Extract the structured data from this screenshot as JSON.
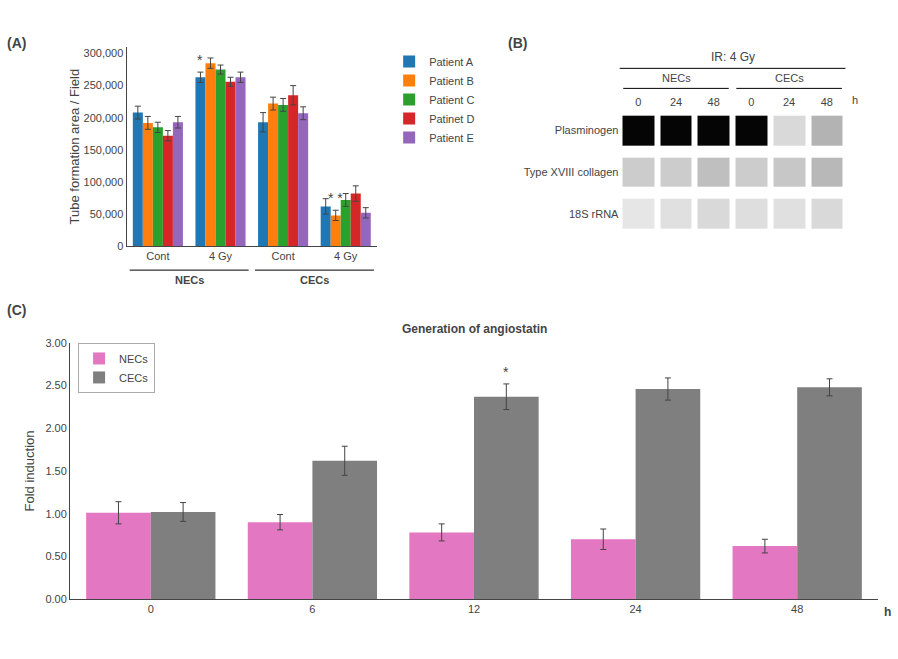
{
  "chart_data": [
    {
      "type": "bar",
      "panel_label": "(A)",
      "categories": [
        "Cont",
        "4 Gy",
        "Cont",
        "4 Gy"
      ],
      "groups": [
        "NECs",
        "NECs",
        "CECs",
        "CECs"
      ],
      "series": [
        {
          "name": "Patient A",
          "values": [
            208000,
            263000,
            193000,
            62000
          ],
          "errors": [
            10000,
            8000,
            15000,
            12000
          ]
        },
        {
          "name": "Patient B",
          "values": [
            192000,
            285000,
            222000,
            48000
          ],
          "errors": [
            10000,
            8000,
            10000,
            8000
          ]
        },
        {
          "name": "Patient C",
          "values": [
            185000,
            275000,
            220000,
            72000
          ],
          "errors": [
            8000,
            7000,
            10000,
            10000
          ]
        },
        {
          "name": "Patinet D",
          "values": [
            172000,
            256000,
            235000,
            82000
          ],
          "errors": [
            8000,
            7000,
            15000,
            12000
          ]
        },
        {
          "name": "Patient E",
          "values": [
            193000,
            263000,
            207000,
            52000
          ],
          "errors": [
            9000,
            8000,
            10000,
            8000
          ]
        }
      ],
      "ylabel": "Tube formation area / Field",
      "ylim": [
        0,
        310000
      ],
      "yticks": [
        0,
        {
          "value": 50000,
          "label": "50,000"
        },
        {
          "value": 100000,
          "label": "100,000"
        },
        {
          "value": 150000,
          "label": "150,000"
        },
        {
          "value": 200000,
          "label": "200,000"
        },
        {
          "value": 250000,
          "label": "250,000"
        },
        {
          "value": 300000,
          "label": "300,000"
        }
      ],
      "grid": false,
      "legend": "right",
      "annotations": [
        {
          "text": "*",
          "category": 1,
          "series": 0
        },
        {
          "text": "* *",
          "category": 3,
          "series": 1
        }
      ]
    },
    {
      "type": "heatmap",
      "panel_label": "(B)",
      "title": "IR: 4 Gy",
      "categories": [
        "0",
        "24",
        "48",
        "0",
        "24",
        "48"
      ],
      "groups": [
        "NECs",
        "NECs",
        "NECs",
        "CECs",
        "CECs",
        "CECs"
      ],
      "xlabel": "h",
      "rows": [
        "Plasminogen",
        "Type XVIII collagen",
        "18S rRNA"
      ],
      "values": [
        [
          0.02,
          0.02,
          0.02,
          0.02,
          0.85,
          0.7
        ],
        [
          0.8,
          0.8,
          0.75,
          0.8,
          0.78,
          0.72
        ],
        [
          0.9,
          0.88,
          0.85,
          0.87,
          0.88,
          0.85
        ]
      ]
    },
    {
      "type": "bar",
      "panel_label": "(C)",
      "title": "Generation of angiostatin",
      "xlabel": "h",
      "ylabel": "Fold induction",
      "categories": [
        "0",
        "6",
        "12",
        "24",
        "48"
      ],
      "series": [
        {
          "name": "NECs",
          "values": [
            1.01,
            0.9,
            0.78,
            0.7,
            0.62
          ],
          "errors": [
            0.13,
            0.09,
            0.1,
            0.12,
            0.08
          ]
        },
        {
          "name": "CECs",
          "values": [
            1.02,
            1.62,
            2.37,
            2.46,
            2.48
          ],
          "errors": [
            0.11,
            0.17,
            0.15,
            0.13,
            0.1
          ]
        }
      ],
      "ylim": [
        0,
        3.0
      ],
      "yticks": [
        {
          "value": 0,
          "label": "0.00"
        },
        {
          "value": 0.5,
          "label": "0.50"
        },
        {
          "value": 1,
          "label": "1.00"
        },
        {
          "value": 1.5,
          "label": "1.50"
        },
        {
          "value": 2,
          "label": "2.00"
        },
        {
          "value": 2.5,
          "label": "2.50"
        },
        {
          "value": 3,
          "label": "3.00"
        }
      ],
      "grid": false,
      "legend": "upper left",
      "annotations": [
        {
          "text": "*",
          "category": 2,
          "series": 1
        }
      ]
    }
  ]
}
